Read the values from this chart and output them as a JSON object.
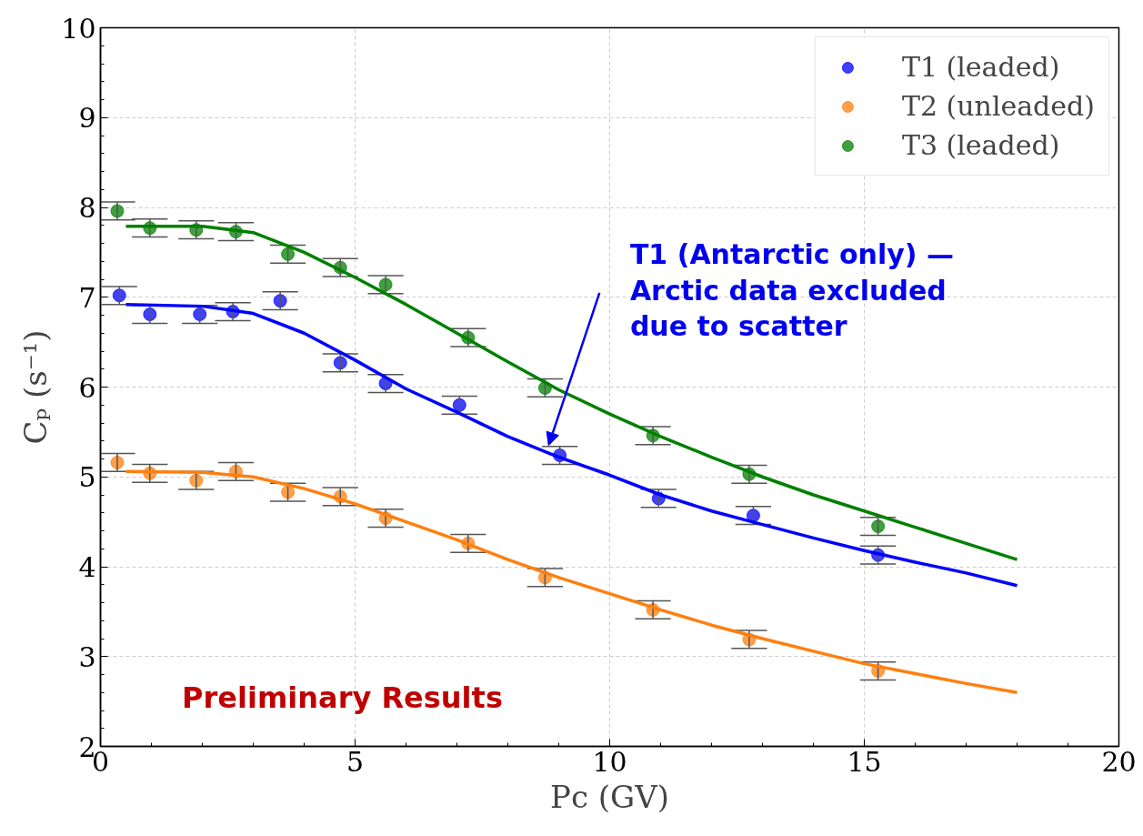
{
  "chart_data": {
    "type": "scatter",
    "xlabel": "Pc (GV)",
    "ylabel": "Cₚ (s⁻¹)",
    "xlim": [
      0,
      20
    ],
    "ylim": [
      2,
      10
    ],
    "xticks": [
      0,
      5,
      10,
      15,
      20
    ],
    "yticks": [
      2,
      3,
      4,
      5,
      6,
      7,
      8,
      9,
      10
    ],
    "grid": true,
    "legend": "top right",
    "marker": "circle",
    "annotations": [
      "Preliminary Results",
      {
        "text": "T1 (Antarctic only) —\nArctic data excluded\ndue to scatter",
        "x": 8.8,
        "y": 5.35
      }
    ],
    "series": [
      {
        "name": "T1 (leaded)",
        "color": "#0000ff",
        "x": [
          0.37,
          0.97,
          1.95,
          2.6,
          3.53,
          4.71,
          5.6,
          7.05,
          9.02,
          10.96,
          12.82,
          15.27
        ],
        "values": [
          7.02,
          6.81,
          6.81,
          6.84,
          6.96,
          6.27,
          6.04,
          5.8,
          5.24,
          4.76,
          4.57,
          4.13
        ],
        "errors": [
          0.1,
          0.1,
          0.1,
          0.1,
          0.1,
          0.1,
          0.1,
          0.1,
          0.1,
          0.1,
          0.1,
          0.1
        ]
      },
      {
        "name": "T2 (unleaded)",
        "color": "#ff7f0e",
        "x": [
          0.33,
          0.97,
          1.88,
          2.66,
          3.68,
          4.71,
          5.6,
          7.22,
          8.73,
          10.85,
          12.74,
          15.27
        ],
        "values": [
          5.16,
          5.04,
          4.96,
          5.06,
          4.83,
          4.78,
          4.54,
          4.26,
          3.88,
          3.52,
          3.19,
          2.84
        ],
        "errors": [
          0.1,
          0.1,
          0.1,
          0.1,
          0.1,
          0.1,
          0.1,
          0.1,
          0.1,
          0.1,
          0.1,
          0.1
        ]
      },
      {
        "name": "T3 (leaded)",
        "color": "#008000",
        "x": [
          0.33,
          0.97,
          1.88,
          2.66,
          3.68,
          4.71,
          5.6,
          7.22,
          8.73,
          10.85,
          12.74,
          15.27
        ],
        "values": [
          7.96,
          7.77,
          7.75,
          7.73,
          7.48,
          7.33,
          7.14,
          6.55,
          5.99,
          5.46,
          5.03,
          4.45
        ],
        "errors": [
          0.1,
          0.1,
          0.1,
          0.1,
          0.1,
          0.1,
          0.1,
          0.1,
          0.1,
          0.1,
          0.1,
          0.1
        ]
      },
      {
        "type": "line",
        "marker": "none",
        "color": "#0000ff",
        "x": [
          0.5,
          2,
          3,
          4,
          5,
          6,
          7,
          8,
          9,
          10,
          11,
          12,
          13,
          14,
          15,
          16,
          17,
          18
        ],
        "values": [
          6.92,
          6.9,
          6.82,
          6.6,
          6.3,
          5.98,
          5.72,
          5.45,
          5.22,
          5.02,
          4.8,
          4.62,
          4.47,
          4.32,
          4.18,
          4.05,
          3.93,
          3.79
        ]
      },
      {
        "type": "line",
        "marker": "none",
        "color": "#ff7f0e",
        "x": [
          0.5,
          2,
          3,
          4,
          5,
          6,
          7,
          8,
          9,
          10,
          11,
          12,
          13,
          14,
          15,
          16,
          17,
          18
        ],
        "values": [
          5.06,
          5.05,
          5.0,
          4.87,
          4.7,
          4.5,
          4.3,
          4.08,
          3.88,
          3.7,
          3.52,
          3.35,
          3.2,
          3.06,
          2.92,
          2.81,
          2.7,
          2.6
        ]
      },
      {
        "type": "line",
        "marker": "none",
        "color": "#008000",
        "x": [
          0.5,
          2,
          3,
          4,
          5,
          6,
          7,
          8,
          9,
          10,
          11,
          12,
          13,
          14,
          15,
          16,
          17,
          18
        ],
        "values": [
          7.79,
          7.79,
          7.72,
          7.5,
          7.22,
          6.92,
          6.6,
          6.28,
          5.97,
          5.7,
          5.45,
          5.22,
          5.0,
          4.8,
          4.62,
          4.44,
          4.26,
          4.08
        ]
      }
    ]
  }
}
